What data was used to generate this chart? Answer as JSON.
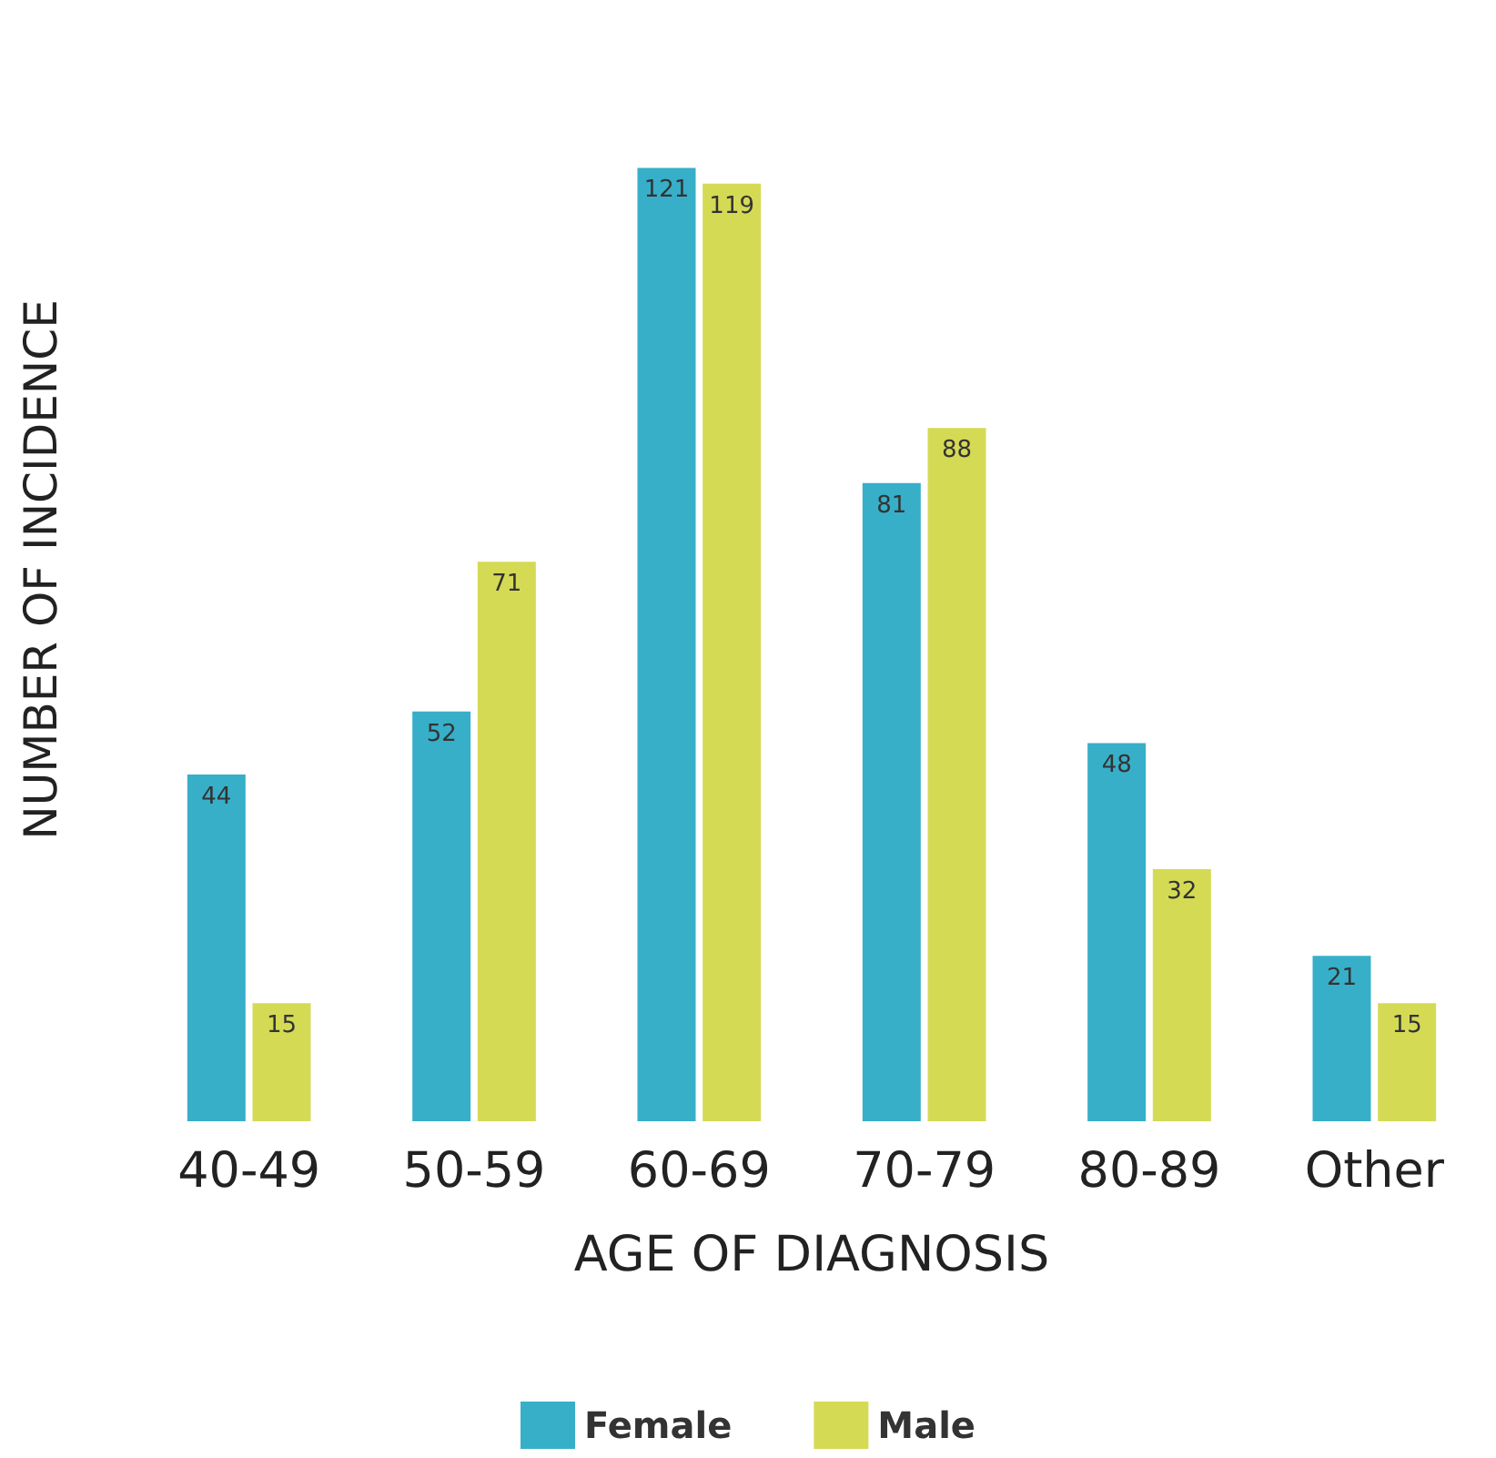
{
  "chart_data": {
    "type": "bar",
    "xlabel": "AGE OF DIAGNOSIS",
    "ylabel": "NUMBER OF INCIDENCE",
    "categories": [
      "40-49",
      "50-59",
      "60-69",
      "70-79",
      "80-89",
      "Other"
    ],
    "series": [
      {
        "name": "Female",
        "color": "#38afc8",
        "values": [
          44,
          52,
          121,
          81,
          48,
          21
        ]
      },
      {
        "name": "Male",
        "color": "#d5da55",
        "values": [
          15,
          71,
          119,
          88,
          32,
          15
        ]
      }
    ],
    "data_labels": true,
    "grid": false,
    "legend": "bottom"
  }
}
